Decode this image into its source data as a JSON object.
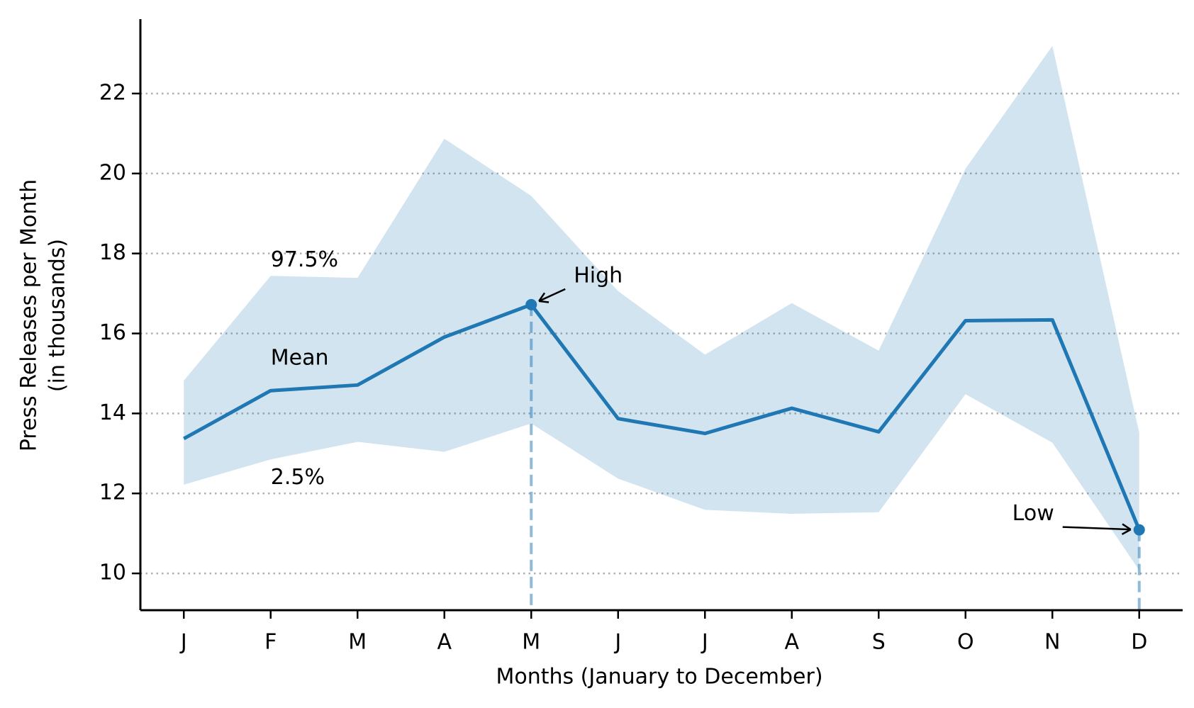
{
  "chart_data": {
    "type": "line",
    "xlabel": "Months (January to December)",
    "ylabel": [
      "Press Releases per Month",
      "(in thousands)"
    ],
    "categories": [
      "J",
      "F",
      "M",
      "A",
      "M",
      "J",
      "J",
      "A",
      "S",
      "O",
      "N",
      "D"
    ],
    "series": [
      {
        "name": "Mean",
        "color": "#1f77b4",
        "values": [
          13.37,
          14.57,
          14.71,
          15.91,
          16.72,
          13.87,
          13.5,
          14.13,
          13.54,
          16.32,
          16.34,
          11.09
        ]
      },
      {
        "name": "97.5%",
        "color": "#1f77b4",
        "values": [
          14.82,
          17.44,
          17.39,
          20.87,
          19.44,
          17.06,
          15.47,
          16.76,
          15.57,
          20.12,
          23.19,
          13.52
        ]
      },
      {
        "name": "2.5%",
        "color": "#1f77b4",
        "values": [
          12.22,
          12.85,
          13.29,
          13.04,
          13.75,
          12.37,
          11.59,
          11.49,
          11.53,
          14.48,
          13.27,
          10.08
        ]
      }
    ],
    "annotations": {
      "max": "High",
      "min": "Low"
    },
    "ylim": [
      9.08,
      23.86
    ],
    "yticks": [
      10,
      12,
      14,
      16,
      18,
      20,
      22
    ],
    "grid": true
  }
}
